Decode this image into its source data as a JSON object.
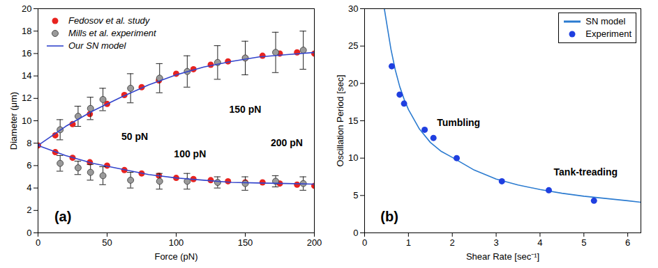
{
  "chart_data": [
    {
      "type": "scatter",
      "panel_label": "(a)",
      "xlabel": "Force (pN)",
      "ylabel": "Diameter (μm)",
      "xlim": [
        0,
        200
      ],
      "xticks": [
        0,
        50,
        100,
        150,
        200
      ],
      "ylim": [
        0,
        20
      ],
      "yticks": [
        0,
        2,
        4,
        6,
        8,
        10,
        12,
        14,
        16,
        18,
        20
      ],
      "legend": "top-left",
      "grid": false,
      "annotations": [
        "50 pN",
        "100 pN",
        "150 pN",
        "200 pN"
      ],
      "series": [
        {
          "name": "Fedosov et al. study",
          "type": "scatter",
          "color": "#e8231f",
          "marker": "circle",
          "x": [
            0,
            12.5,
            25,
            37.5,
            50,
            62.5,
            75,
            87.5,
            100,
            112.5,
            125,
            137.5,
            150,
            162.5,
            175,
            187.5,
            200,
            12.5,
            25,
            37.5,
            50,
            62.5,
            75,
            87.5,
            100,
            112.5,
            125,
            137.5,
            150,
            162.5,
            175,
            187.5,
            200
          ],
          "values": [
            7.8,
            8.7,
            9.7,
            10.6,
            11.5,
            12.3,
            13.0,
            13.6,
            14.2,
            14.6,
            15.0,
            15.3,
            15.6,
            15.8,
            16.0,
            16.1,
            16.0,
            7.2,
            6.7,
            6.3,
            6.0,
            5.6,
            5.3,
            5.1,
            4.9,
            4.8,
            4.7,
            4.6,
            4.5,
            4.5,
            4.4,
            4.3,
            4.2
          ]
        },
        {
          "name": "Mills et al. experiment",
          "type": "scatter",
          "color": "#9a9a9a",
          "marker": "circle",
          "x": [
            16,
            29,
            38,
            47,
            67,
            88,
            108,
            130,
            150,
            172,
            192,
            16,
            29,
            38,
            47,
            67,
            88,
            108,
            130,
            150,
            172,
            192
          ],
          "values": [
            9.2,
            10.4,
            11.1,
            11.9,
            12.9,
            13.8,
            14.4,
            15.2,
            15.6,
            16.1,
            16.3,
            6.2,
            5.8,
            5.4,
            5.1,
            4.7,
            4.6,
            4.6,
            4.5,
            4.4,
            4.6,
            4.4
          ],
          "error": [
            0.9,
            0.9,
            1.0,
            1.0,
            1.3,
            1.3,
            1.4,
            1.5,
            1.5,
            1.8,
            1.7,
            0.7,
            0.6,
            0.7,
            0.8,
            0.7,
            0.7,
            0.7,
            0.5,
            0.6,
            0.5,
            0.6
          ]
        },
        {
          "name": "Our SN model",
          "type": "line",
          "color": "#3344cc",
          "line_style": "solid",
          "x": [
            0,
            20,
            40,
            60,
            80,
            100,
            120,
            140,
            160,
            180,
            200,
            null,
            0,
            20,
            40,
            60,
            80,
            100,
            120,
            140,
            160,
            180,
            200
          ],
          "values": [
            7.8,
            9.5,
            10.9,
            12.1,
            13.2,
            14.1,
            14.8,
            15.3,
            15.7,
            15.9,
            16.1,
            null,
            7.8,
            6.9,
            6.2,
            5.7,
            5.2,
            4.9,
            4.7,
            4.5,
            4.45,
            4.4,
            4.35
          ]
        }
      ]
    },
    {
      "type": "scatter",
      "panel_label": "(b)",
      "xlabel": "Shear Rate [sec⁻¹]",
      "ylabel": "Oscillation Period [sec]",
      "xlim": [
        0,
        6.3
      ],
      "xticks": [
        0,
        1,
        2,
        3,
        4,
        5,
        6
      ],
      "ylim": [
        0,
        30
      ],
      "yticks": [
        0,
        5,
        10,
        15,
        20,
        25,
        30
      ],
      "legend": "top-right",
      "grid": false,
      "annotations": [
        "Tumbling",
        "Tank-treading"
      ],
      "series": [
        {
          "name": "SN model",
          "type": "line",
          "color": "#2b7bd0",
          "line_style": "solid",
          "x": [
            0.45,
            0.5,
            0.6,
            0.7,
            0.8,
            0.9,
            1.0,
            1.25,
            1.5,
            1.75,
            2,
            2.5,
            3,
            3.5,
            4,
            4.5,
            5,
            5.5,
            6,
            6.3
          ],
          "values": [
            30,
            28.2,
            24.6,
            21.8,
            19.6,
            17.9,
            16.5,
            13.9,
            12.1,
            10.9,
            10.1,
            8.4,
            7.2,
            6.4,
            5.8,
            5.3,
            4.9,
            4.6,
            4.3,
            4.1
          ]
        },
        {
          "name": "Experiment",
          "type": "scatter",
          "color": "#1f3fe0",
          "marker": "circle",
          "x": [
            0.62,
            0.8,
            0.9,
            1.37,
            1.57,
            2.1,
            3.13,
            4.2,
            5.23
          ],
          "values": [
            22.3,
            18.5,
            17.3,
            13.8,
            12.7,
            10.0,
            6.9,
            5.7,
            4.3
          ]
        }
      ]
    }
  ]
}
